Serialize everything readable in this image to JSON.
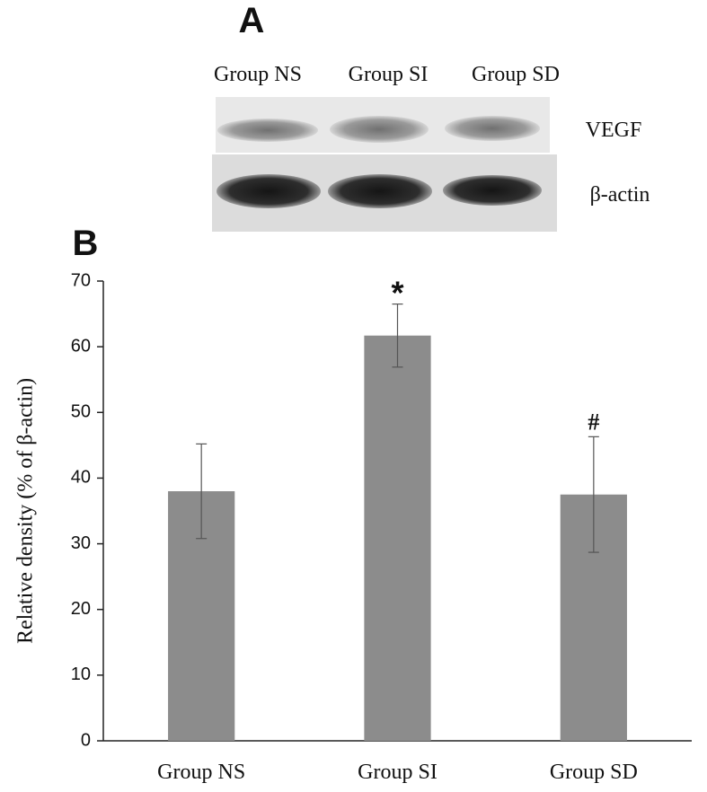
{
  "panel_a": {
    "label": "A",
    "lanes": [
      "Group NS",
      "Group SI",
      "Group SD"
    ],
    "rows": [
      "VEGF",
      "β-actin"
    ]
  },
  "chart_data": {
    "type": "bar",
    "panel_label": "B",
    "ylabel": "Relative density (% of β-actin)",
    "categories": [
      "Group NS",
      "Group SI",
      "Group SD"
    ],
    "values": [
      38,
      61.7,
      37.5
    ],
    "errors": [
      7.2,
      4.8,
      8.8
    ],
    "annotations": [
      null,
      "*",
      "#"
    ],
    "color": "#8c8c8c",
    "ylim": [
      0,
      70
    ],
    "yticks": [
      0,
      10,
      20,
      30,
      40,
      50,
      60,
      70
    ]
  }
}
